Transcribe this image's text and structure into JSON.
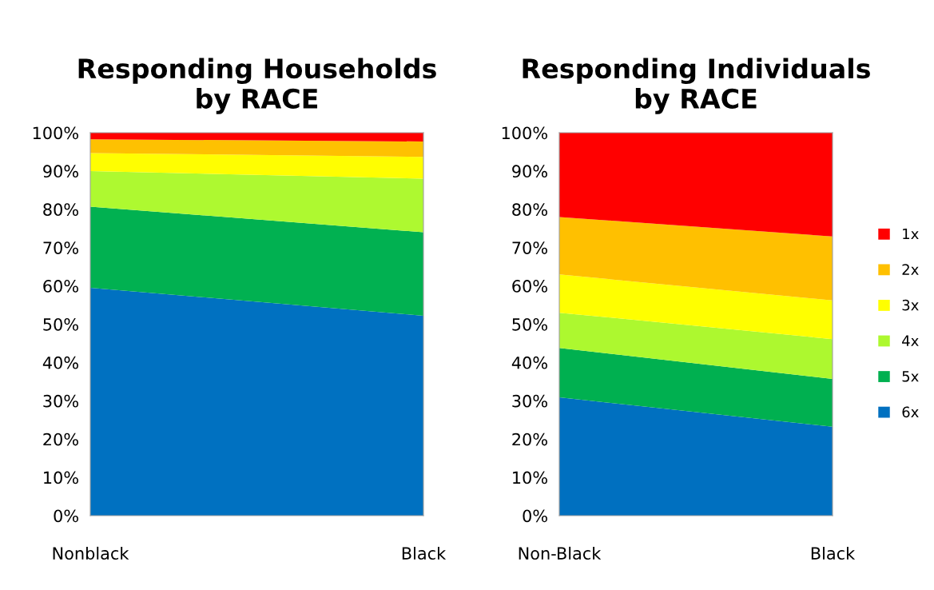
{
  "chart_data": [
    {
      "type": "area",
      "title": "Responding Households\nby RACE",
      "categories": [
        "Nonblack",
        "Black"
      ],
      "stacked": true,
      "ylim": [
        0,
        100
      ],
      "yticks": [
        {
          "value": 0,
          "label": "0%"
        },
        {
          "value": 10,
          "label": "10%"
        },
        {
          "value": 20,
          "label": "20%"
        },
        {
          "value": 30,
          "label": "30%"
        },
        {
          "value": 40,
          "label": "40%"
        },
        {
          "value": 50,
          "label": "50%"
        },
        {
          "value": 60,
          "label": "60%"
        },
        {
          "value": 70,
          "label": "70%"
        },
        {
          "value": 80,
          "label": "80%"
        },
        {
          "value": 90,
          "label": "90%"
        },
        {
          "value": 100,
          "label": "100%"
        }
      ],
      "series": [
        {
          "color": "#0071c1",
          "values": [
            59.5,
            52.2
          ]
        },
        {
          "color": "#01b151",
          "values": [
            21.2,
            21.8
          ]
        },
        {
          "color": "#aef930",
          "values": [
            9.3,
            14.0
          ]
        },
        {
          "color": "#fffe01",
          "values": [
            4.7,
            5.7
          ]
        },
        {
          "color": "#fec101",
          "values": [
            3.6,
            4.0
          ]
        },
        {
          "color": "#fe0101",
          "values": [
            1.7,
            2.3
          ]
        }
      ]
    },
    {
      "type": "area",
      "title": "Responding Individuals\nby RACE",
      "categories": [
        "Non-Black",
        "Black"
      ],
      "stacked": true,
      "ylim": [
        0,
        100
      ],
      "legend": "right",
      "yticks": [
        {
          "value": 0,
          "label": "0%"
        },
        {
          "value": 10,
          "label": "10%"
        },
        {
          "value": 20,
          "label": "20%"
        },
        {
          "value": 30,
          "label": "30%"
        },
        {
          "value": 40,
          "label": "40%"
        },
        {
          "value": 50,
          "label": "50%"
        },
        {
          "value": 60,
          "label": "60%"
        },
        {
          "value": 70,
          "label": "70%"
        },
        {
          "value": 80,
          "label": "80%"
        },
        {
          "value": 90,
          "label": "90%"
        },
        {
          "value": 100,
          "label": "100%"
        }
      ],
      "series": [
        {
          "name": "6x",
          "color": "#0070c0",
          "values": [
            30.9,
            23.2
          ]
        },
        {
          "name": "5x",
          "color": "#00b050",
          "values": [
            12.9,
            12.5
          ]
        },
        {
          "name": "4x",
          "color": "#adf82f",
          "values": [
            9.2,
            10.4
          ]
        },
        {
          "name": "3x",
          "color": "#ffff00",
          "values": [
            10.0,
            10.1
          ]
        },
        {
          "name": "2x",
          "color": "#ffc000",
          "values": [
            15.0,
            16.7
          ]
        },
        {
          "name": "1x",
          "color": "#ff0000",
          "values": [
            22.0,
            27.1
          ]
        }
      ]
    }
  ]
}
